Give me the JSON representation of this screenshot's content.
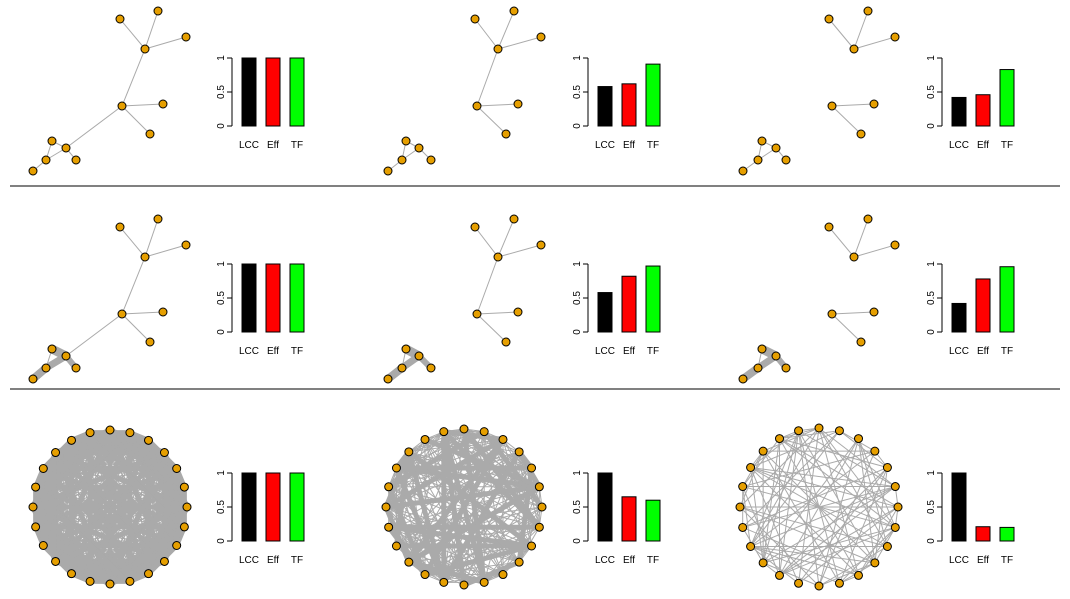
{
  "colors": {
    "node_fill": "#E69F00",
    "node_stroke": "#000000",
    "edge": "#AAAAAA",
    "bar_lcc": "#000000",
    "bar_eff": "#FF0000",
    "bar_tf": "#00FF00",
    "divider": "#000000"
  },
  "chart_data": [
    {
      "type": "bar",
      "row": 1,
      "col": 1,
      "categories": [
        "LCC",
        "Eff",
        "TF"
      ],
      "values": [
        1.0,
        1.0,
        1.0
      ],
      "ylim": [
        0,
        1
      ],
      "yticks": [
        "0",
        "0.5",
        "1"
      ]
    },
    {
      "type": "bar",
      "row": 1,
      "col": 2,
      "categories": [
        "LCC",
        "Eff",
        "TF"
      ],
      "values": [
        0.58,
        0.62,
        0.91
      ],
      "ylim": [
        0,
        1
      ],
      "yticks": [
        "0",
        "0.5",
        "1"
      ]
    },
    {
      "type": "bar",
      "row": 1,
      "col": 3,
      "categories": [
        "LCC",
        "Eff",
        "TF"
      ],
      "values": [
        0.42,
        0.46,
        0.83
      ],
      "ylim": [
        0,
        1
      ],
      "yticks": [
        "0",
        "0.5",
        "1"
      ]
    },
    {
      "type": "bar",
      "row": 2,
      "col": 1,
      "categories": [
        "LCC",
        "Eff",
        "TF"
      ],
      "values": [
        1.0,
        1.0,
        1.0
      ],
      "ylim": [
        0,
        1
      ],
      "yticks": [
        "0",
        "0.5",
        "1"
      ]
    },
    {
      "type": "bar",
      "row": 2,
      "col": 2,
      "categories": [
        "LCC",
        "Eff",
        "TF"
      ],
      "values": [
        0.58,
        0.82,
        0.97
      ],
      "ylim": [
        0,
        1
      ],
      "yticks": [
        "0",
        "0.5",
        "1"
      ]
    },
    {
      "type": "bar",
      "row": 2,
      "col": 3,
      "categories": [
        "LCC",
        "Eff",
        "TF"
      ],
      "values": [
        0.42,
        0.78,
        0.96
      ],
      "ylim": [
        0,
        1
      ],
      "yticks": [
        "0",
        "0.5",
        "1"
      ]
    },
    {
      "type": "bar",
      "row": 3,
      "col": 1,
      "categories": [
        "LCC",
        "Eff",
        "TF"
      ],
      "values": [
        1.0,
        1.0,
        1.0
      ],
      "ylim": [
        0,
        1
      ],
      "yticks": [
        "0",
        "0.5",
        "1"
      ]
    },
    {
      "type": "bar",
      "row": 3,
      "col": 2,
      "categories": [
        "LCC",
        "Eff",
        "TF"
      ],
      "values": [
        1.0,
        0.65,
        0.6
      ],
      "ylim": [
        0,
        1
      ],
      "yticks": [
        "0",
        "0.5",
        "1"
      ]
    },
    {
      "type": "bar",
      "row": 3,
      "col": 3,
      "categories": [
        "LCC",
        "Eff",
        "TF"
      ],
      "values": [
        1.0,
        0.21,
        0.2
      ],
      "ylim": [
        0,
        1
      ],
      "yticks": [
        "0",
        "0.5",
        "1"
      ]
    }
  ]
}
